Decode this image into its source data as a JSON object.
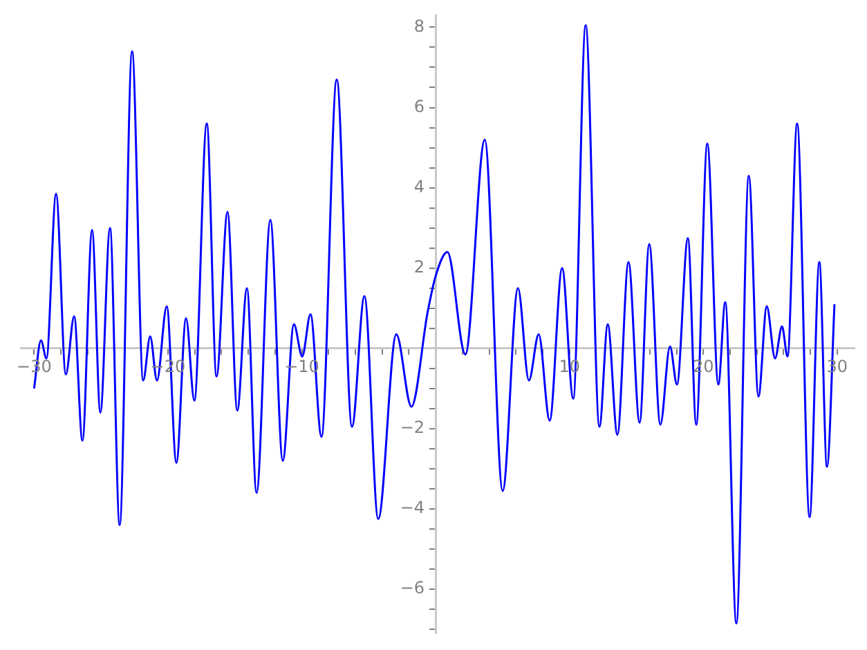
{
  "chart_data": {
    "type": "line",
    "grid": false,
    "marker": "none",
    "line_style": "solid",
    "xlim": [
      -31,
      31.3
    ],
    "ylim": [
      -7.1,
      8.3
    ],
    "xticks": [
      {
        "value": -30,
        "label": "−30"
      },
      {
        "value": -28,
        "label": null
      },
      {
        "value": -26,
        "label": null
      },
      {
        "value": -24,
        "label": null
      },
      {
        "value": -22,
        "label": null
      },
      {
        "value": -20,
        "label": "−20"
      },
      {
        "value": -18,
        "label": null
      },
      {
        "value": -16,
        "label": null
      },
      {
        "value": -14,
        "label": null
      },
      {
        "value": -12,
        "label": null
      },
      {
        "value": -10,
        "label": "−10"
      },
      {
        "value": -8,
        "label": null
      },
      {
        "value": -6,
        "label": null
      },
      {
        "value": -4,
        "label": null
      },
      {
        "value": -2,
        "label": null
      },
      {
        "value": 2,
        "label": null
      },
      {
        "value": 4,
        "label": null
      },
      {
        "value": 6,
        "label": null
      },
      {
        "value": 8,
        "label": null
      },
      10,
      {
        "value": 12,
        "label": null
      },
      {
        "value": 14,
        "label": null
      },
      {
        "value": 16,
        "label": null
      },
      {
        "value": 18,
        "label": null
      },
      20,
      {
        "value": 22,
        "label": null
      },
      {
        "value": 24,
        "label": null
      },
      {
        "value": 26,
        "label": null
      },
      {
        "value": 28,
        "label": null
      },
      30
    ],
    "yticks": [
      {
        "value": -7,
        "label": null
      },
      {
        "value": -6.5,
        "label": null
      },
      {
        "value": -6,
        "label": "−6"
      },
      {
        "value": -5.5,
        "label": null
      },
      {
        "value": -5,
        "label": null
      },
      {
        "value": -4.5,
        "label": null
      },
      {
        "value": -4,
        "label": "−4"
      },
      {
        "value": -3.5,
        "label": null
      },
      {
        "value": -3,
        "label": null
      },
      {
        "value": -2.5,
        "label": null
      },
      {
        "value": -2,
        "label": "−2"
      },
      {
        "value": -1.5,
        "label": null
      },
      {
        "value": -1,
        "label": null
      },
      {
        "value": -0.5,
        "label": null
      },
      {
        "value": 0.5,
        "label": null
      },
      {
        "value": 1,
        "label": null
      },
      {
        "value": 1.5,
        "label": null
      },
      2,
      {
        "value": 2.5,
        "label": null
      },
      {
        "value": 3,
        "label": null
      },
      {
        "value": 3.5,
        "label": null
      },
      4,
      {
        "value": 4.5,
        "label": null
      },
      {
        "value": 5,
        "label": null
      },
      {
        "value": 5.5,
        "label": null
      },
      6,
      {
        "value": 6.5,
        "label": null
      },
      {
        "value": 7,
        "label": null
      },
      {
        "value": 7.5,
        "label": null
      },
      8
    ],
    "series": [
      {
        "color": "#0000ff",
        "x": [
          -30,
          -29.49,
          -29.08,
          -28.36,
          -27.63,
          -27.01,
          -26.39,
          -25.67,
          -25.05,
          -24.33,
          -23.61,
          -22.68,
          -21.85,
          -21.33,
          -20.82,
          -20.09,
          -19.37,
          -18.65,
          -18.03,
          -17.1,
          -16.37,
          -15.55,
          -14.82,
          -14.1,
          -13.38,
          -12.35,
          -11.42,
          -10.59,
          -9.97,
          -9.35,
          -8.53,
          -7.39,
          -6.25,
          -5.32,
          -4.29,
          -2.94,
          -1.81,
          -0.6,
          0,
          0.88,
          2.22,
          3.67,
          5.01,
          6.15,
          6.97,
          7.7,
          8.52,
          9.45,
          10.28,
          11.21,
          12.24,
          12.86,
          13.58,
          14.41,
          15.24,
          15.96,
          16.79,
          17.51,
          18.03,
          18.85,
          19.47,
          20.3,
          21.12,
          21.64,
          22.47,
          23.4,
          24.12,
          24.74,
          25.36,
          25.88,
          26.29,
          27.01,
          27.94,
          28.67,
          29.24,
          29.8
        ],
        "values": [
          -1.0,
          0.2,
          -0.25,
          3.85,
          -0.65,
          0.8,
          -2.3,
          2.95,
          -1.6,
          3.0,
          -4.4,
          7.4,
          -0.8,
          0.3,
          -0.8,
          1.05,
          -2.85,
          0.75,
          -1.3,
          5.6,
          -0.7,
          3.4,
          -1.55,
          1.5,
          -3.6,
          3.2,
          -2.8,
          0.6,
          -0.2,
          0.85,
          -2.2,
          6.7,
          -1.95,
          1.3,
          -4.25,
          0.35,
          -1.45,
          0.9,
          1.8,
          2.4,
          -0.15,
          5.2,
          -3.55,
          1.5,
          -0.8,
          0.35,
          -1.8,
          2.0,
          -1.25,
          8.05,
          -1.95,
          0.6,
          -2.15,
          2.15,
          -1.85,
          2.6,
          -1.9,
          0.05,
          -0.9,
          2.75,
          -1.9,
          5.1,
          -0.9,
          1.15,
          -6.85,
          4.3,
          -1.2,
          1.05,
          -0.25,
          0.55,
          -0.2,
          5.6,
          -4.2,
          2.15,
          -2.95,
          1.1
        ]
      }
    ]
  }
}
